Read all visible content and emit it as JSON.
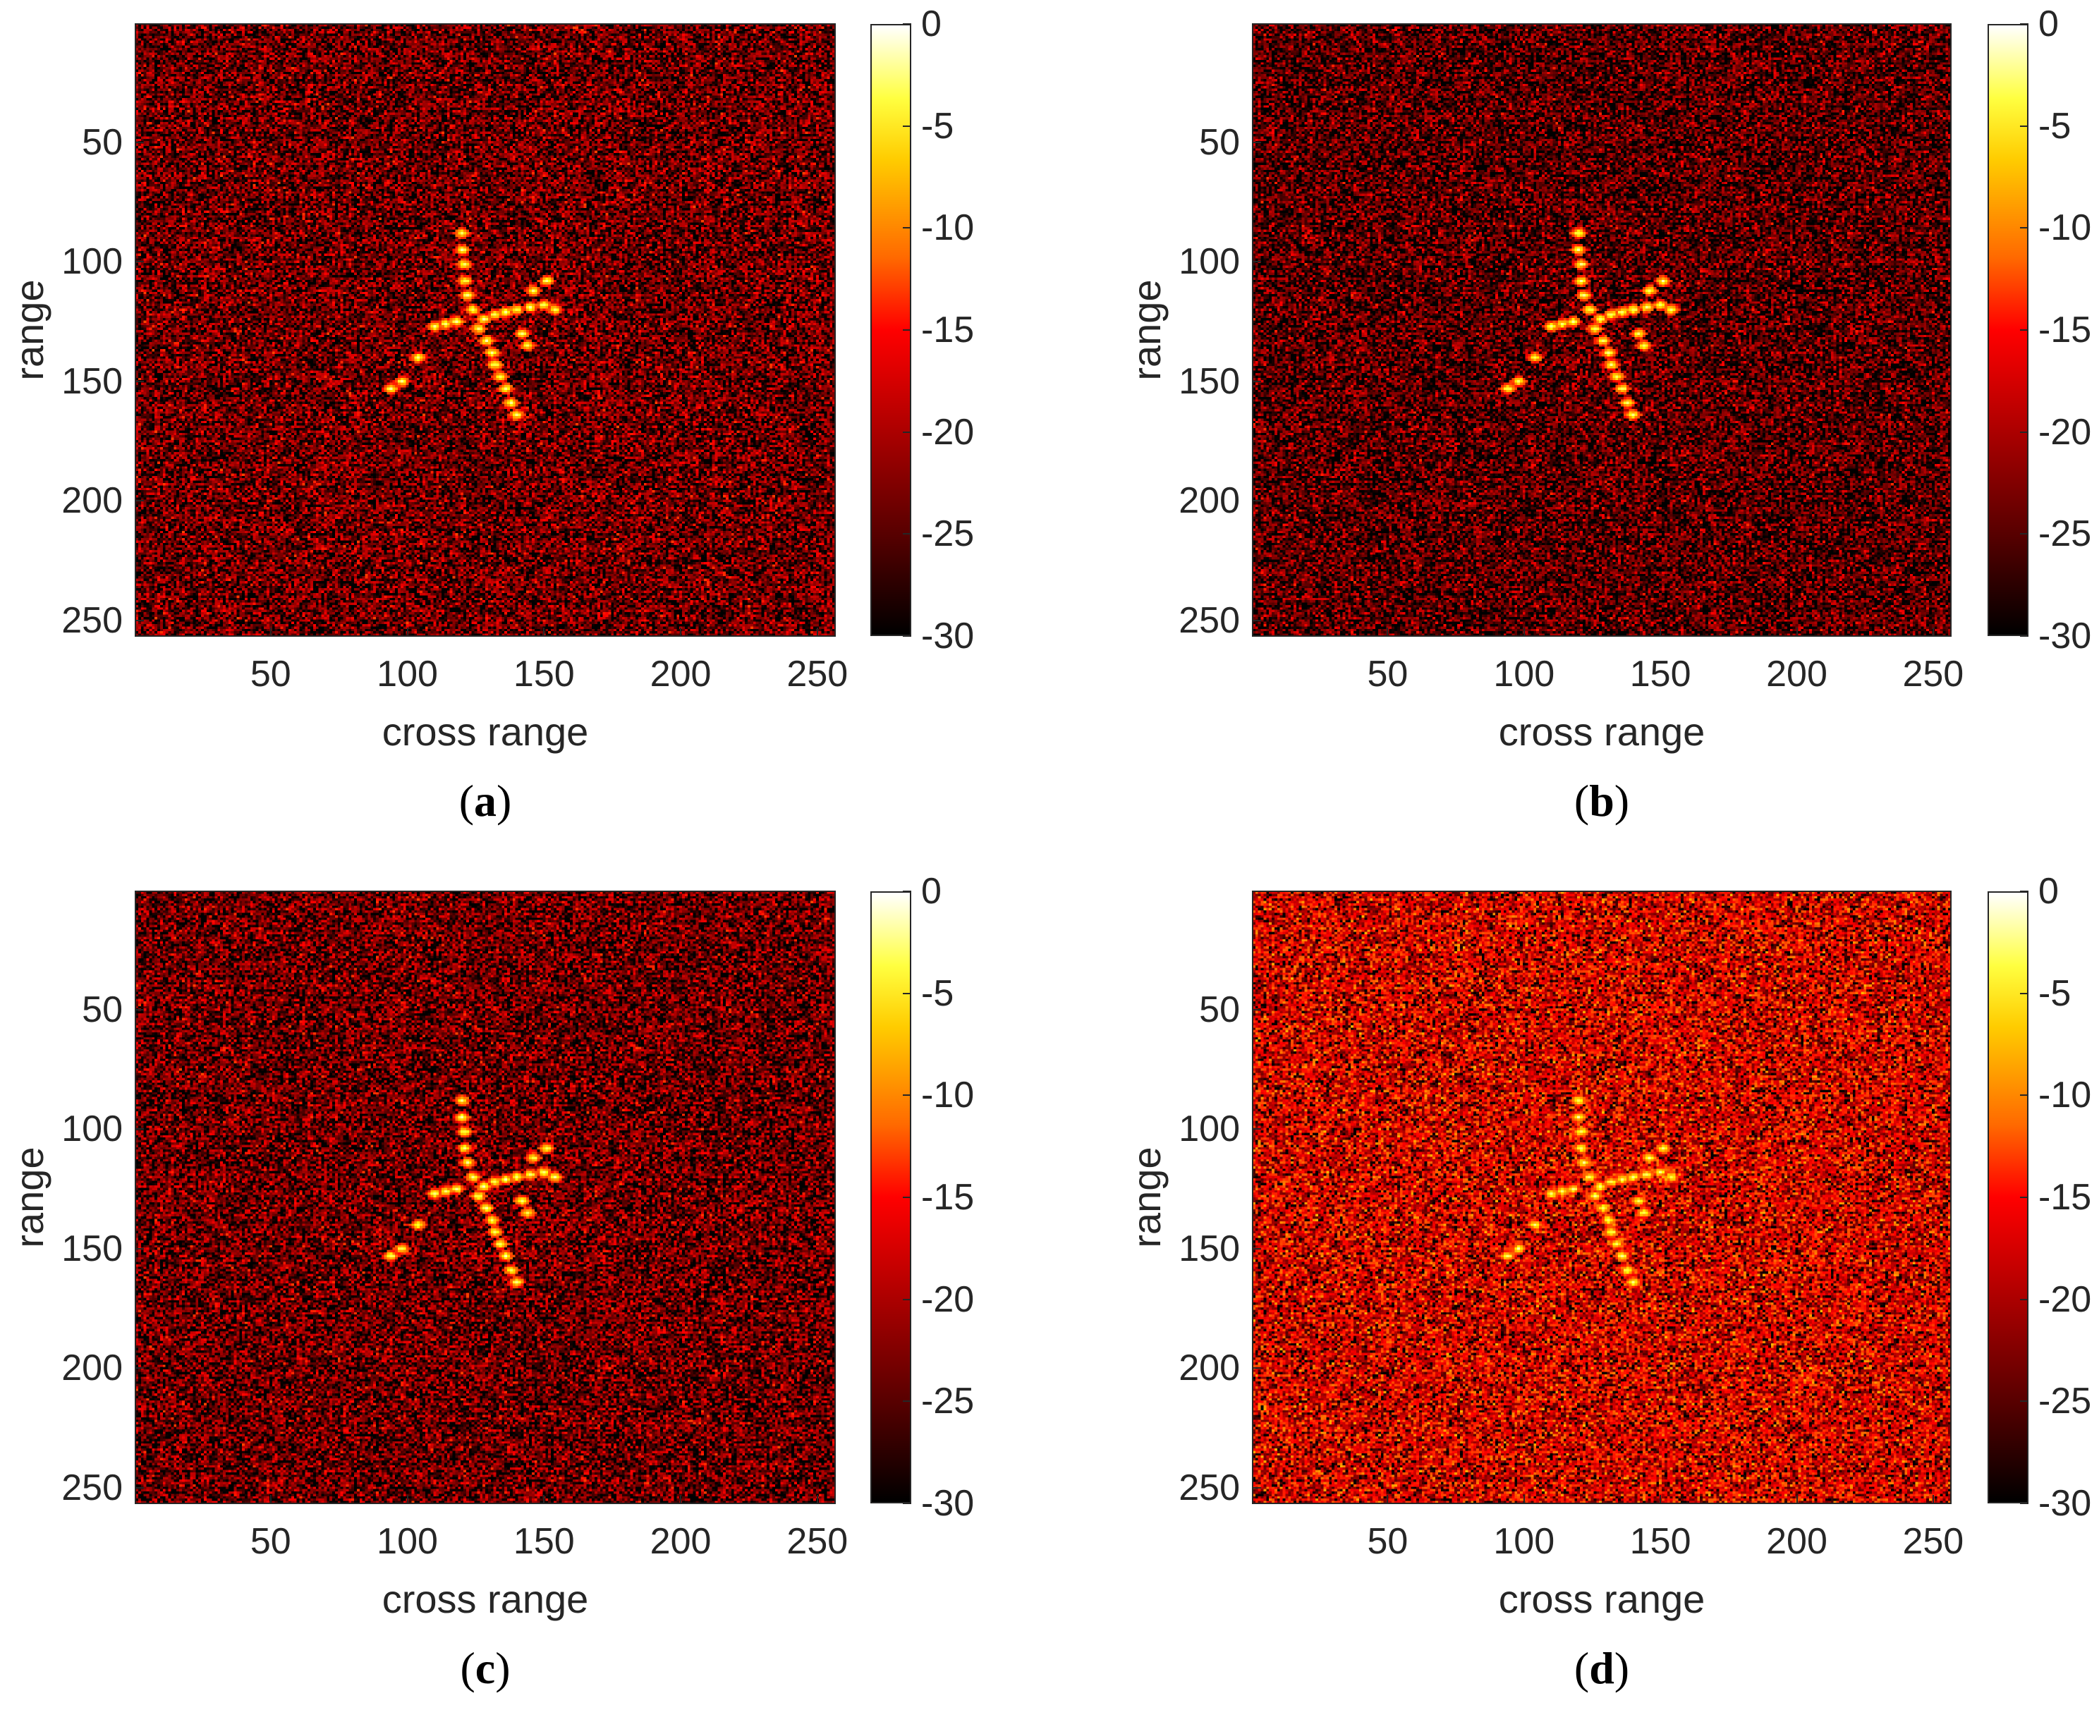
{
  "chart_data": [
    {
      "panel": "(a)",
      "type": "heatmap",
      "xlabel": "cross range",
      "ylabel": "range",
      "xlim": [
        1,
        256
      ],
      "ylim": [
        1,
        256
      ],
      "xticks": [
        50,
        100,
        150,
        200,
        250
      ],
      "yticks": [
        50,
        100,
        150,
        200,
        250
      ],
      "colorbar": {
        "min": -30,
        "max": 0,
        "ticks": [
          0,
          -5,
          -10,
          -15,
          -20,
          -25,
          -30
        ],
        "colormap": "hot"
      },
      "background_level_db": -24,
      "target_center": [
        130,
        125
      ]
    },
    {
      "panel": "(b)",
      "type": "heatmap",
      "xlabel": "cross range",
      "ylabel": "range",
      "xlim": [
        1,
        256
      ],
      "ylim": [
        1,
        256
      ],
      "xticks": [
        50,
        100,
        150,
        200,
        250
      ],
      "yticks": [
        50,
        100,
        150,
        200,
        250
      ],
      "colorbar": {
        "min": -30,
        "max": 0,
        "ticks": [
          0,
          -5,
          -10,
          -15,
          -20,
          -25,
          -30
        ],
        "colormap": "hot"
      },
      "background_level_db": -25,
      "target_center": [
        130,
        125
      ]
    },
    {
      "panel": "(c)",
      "type": "heatmap",
      "xlabel": "cross range",
      "ylabel": "range",
      "xlim": [
        1,
        256
      ],
      "ylim": [
        1,
        256
      ],
      "xticks": [
        50,
        100,
        150,
        200,
        250
      ],
      "yticks": [
        50,
        100,
        150,
        200,
        250
      ],
      "colorbar": {
        "min": -30,
        "max": 0,
        "ticks": [
          0,
          -5,
          -10,
          -15,
          -20,
          -25,
          -30
        ],
        "colormap": "hot"
      },
      "background_level_db": -24,
      "target_center": [
        130,
        125
      ]
    },
    {
      "panel": "(d)",
      "type": "heatmap",
      "xlabel": "cross range",
      "ylabel": "range",
      "xlim": [
        1,
        256
      ],
      "ylim": [
        1,
        256
      ],
      "xticks": [
        50,
        100,
        150,
        200,
        250
      ],
      "yticks": [
        50,
        100,
        150,
        200,
        250
      ],
      "colorbar": {
        "min": -30,
        "max": 0,
        "ticks": [
          0,
          -5,
          -10,
          -15,
          -20,
          -25,
          -30
        ],
        "colormap": "hot"
      },
      "background_level_db": -19,
      "target_center": [
        130,
        125
      ]
    }
  ]
}
